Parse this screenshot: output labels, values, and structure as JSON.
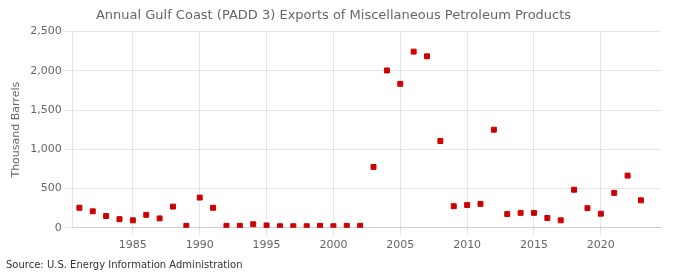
{
  "chart_data": {
    "type": "scatter",
    "title": "Annual Gulf Coast (PADD 3) Exports of Miscellaneous Petroleum Products",
    "ylabel": "Thousand Barrels",
    "annotation": "Source: U.S. Energy Information Administration",
    "x": [
      1981,
      1982,
      1983,
      1984,
      1985,
      1986,
      1987,
      1988,
      1989,
      1990,
      1991,
      1992,
      1993,
      1994,
      1995,
      1996,
      1997,
      1998,
      1999,
      2000,
      2001,
      2002,
      2003,
      2004,
      2005,
      2006,
      2007,
      2008,
      2009,
      2010,
      2011,
      2012,
      2013,
      2014,
      2015,
      2016,
      2017,
      2018,
      2019,
      2020,
      2021,
      2022,
      2023
    ],
    "values": [
      255,
      210,
      150,
      110,
      95,
      165,
      120,
      270,
      25,
      385,
      255,
      25,
      25,
      45,
      30,
      20,
      20,
      20,
      25,
      20,
      25,
      25,
      775,
      2005,
      1835,
      2245,
      2185,
      1105,
      275,
      290,
      305,
      1250,
      175,
      190,
      190,
      125,
      95,
      485,
      250,
      180,
      445,
      665,
      350
    ],
    "color": "#cc0000",
    "marker": "square",
    "xlim": [
      1980.5,
      2024.5
    ],
    "xticks": [
      1985,
      1990,
      1995,
      2000,
      2005,
      2010,
      2015,
      2020
    ],
    "ylim": [
      0,
      2500
    ],
    "yticks": [
      0,
      500,
      {
        "value": 1000,
        "label": "1,000"
      },
      {
        "value": 1500,
        "label": "1,500"
      },
      {
        "value": 2000,
        "label": "2,000"
      },
      {
        "value": 2500,
        "label": "2,500"
      }
    ],
    "grid": true
  }
}
